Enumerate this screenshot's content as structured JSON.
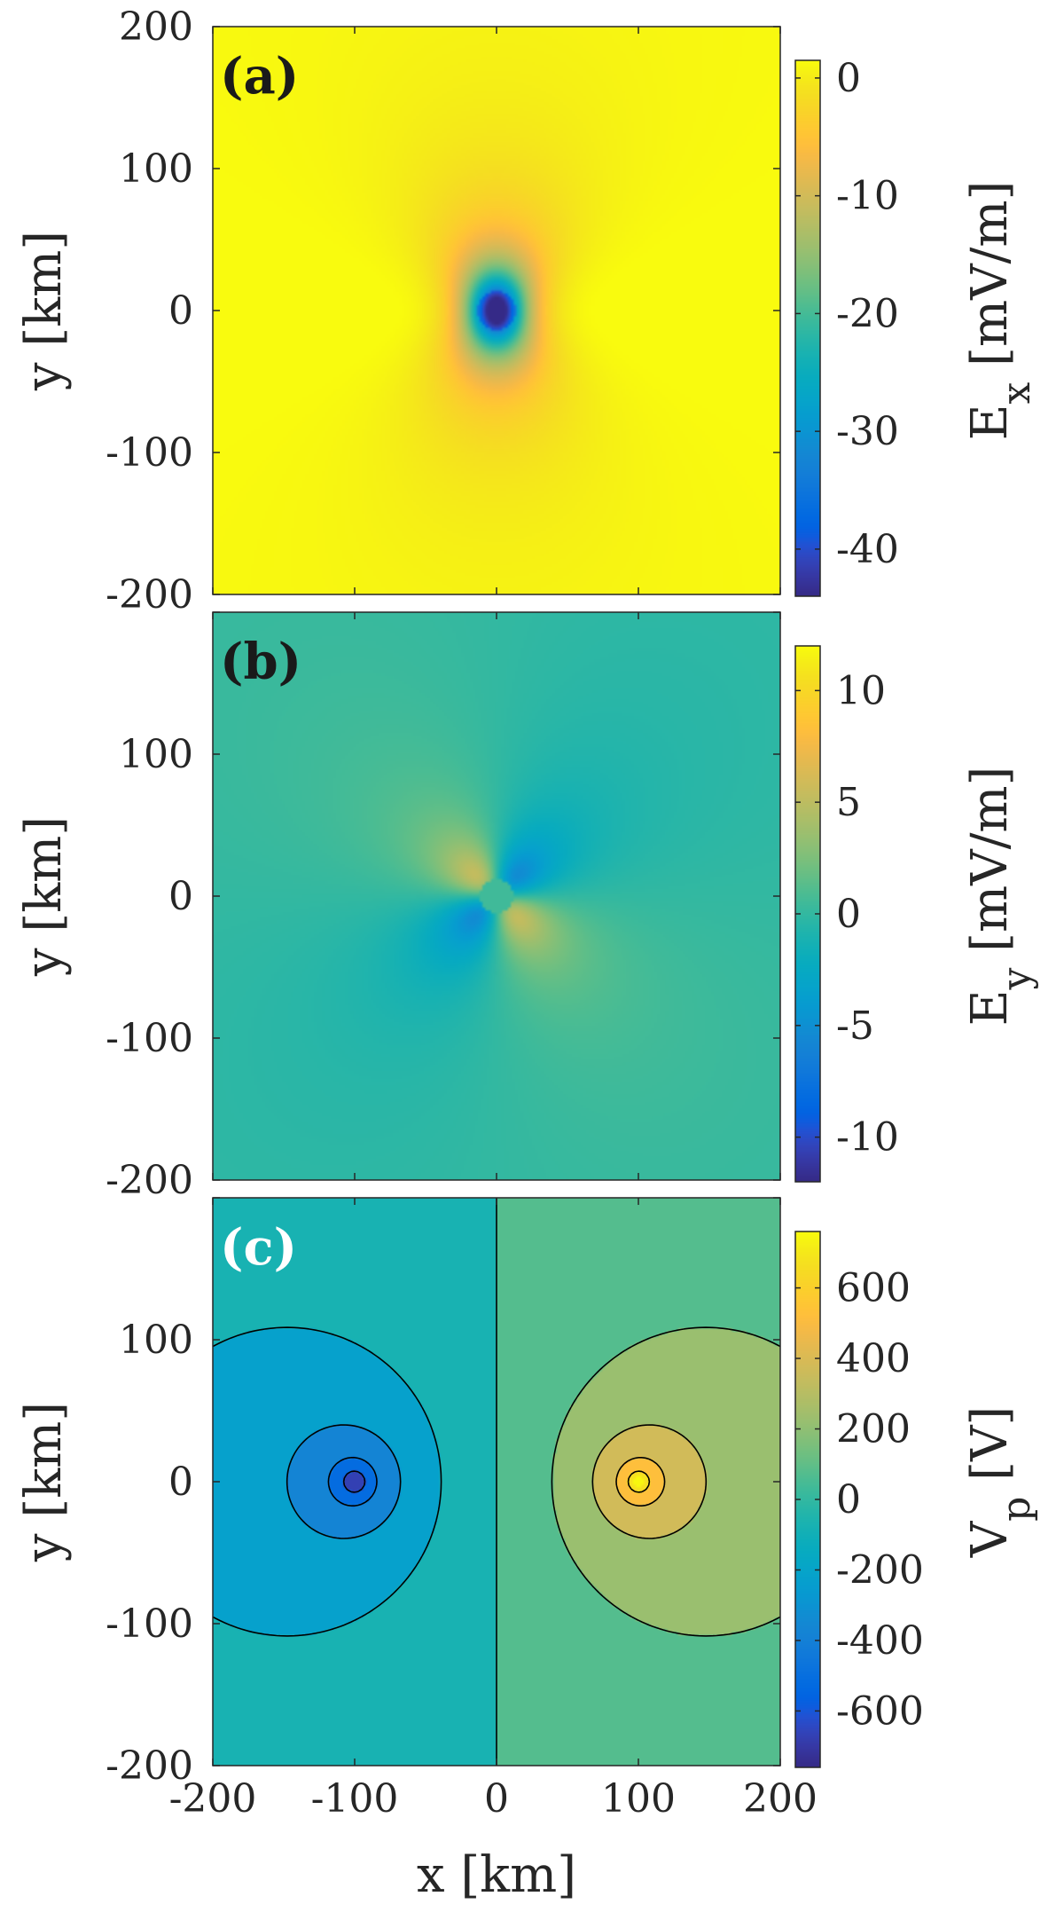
{
  "chart_data": [
    {
      "type": "heatmap",
      "panel_label": "(a)",
      "field": "Ex",
      "xlim": [
        -200,
        200
      ],
      "ylim": [
        -200,
        200
      ],
      "yticks": [
        "200",
        "100",
        "0",
        "-100",
        "-200"
      ],
      "ylabel": "y  [km]",
      "colorbar": {
        "label_main": "E",
        "label_sub": "x",
        "label_unit": "  [mV/m]",
        "range": [
          -44,
          1.5
        ],
        "ticks": [
          0,
          -10,
          -20,
          -30,
          -40
        ],
        "tick_labels": [
          "0",
          "-10",
          "-20",
          "-30",
          "-40"
        ]
      }
    },
    {
      "type": "heatmap",
      "panel_label": "(b)",
      "field": "Ey",
      "xlim": [
        -200,
        200
      ],
      "ylim": [
        -200,
        200
      ],
      "yticks": [
        "",
        "100",
        "0",
        "-100",
        "-200"
      ],
      "ylabel": "y  [km]",
      "colorbar": {
        "label_main": "E",
        "label_sub": "y",
        "label_unit": "  [mV/m]",
        "range": [
          -12,
          12
        ],
        "ticks": [
          10,
          5,
          0,
          -5,
          -10
        ],
        "tick_labels": [
          "10",
          "5",
          "0",
          "-5",
          "-10"
        ]
      }
    },
    {
      "type": "heatmap",
      "panel_label": "(c)",
      "field": "Vp",
      "xlim": [
        -200,
        200
      ],
      "ylim": [
        -200,
        200
      ],
      "yticks": [
        "",
        "100",
        "0",
        "-100",
        "-200"
      ],
      "xticks": [
        "-200",
        "-100",
        "0",
        "100",
        "200"
      ],
      "ylabel": "y  [km]",
      "xlabel": "x  [km]",
      "contour_levels": [
        -750,
        -600,
        -450,
        -300,
        -150,
        0,
        150,
        300,
        450,
        600,
        750
      ],
      "colorbar": {
        "label_main": "V",
        "label_sub": "p",
        "label_unit": "  [V]",
        "range": [
          -760,
          760
        ],
        "ticks": [
          600,
          400,
          200,
          0,
          -200,
          -400,
          -600
        ],
        "tick_labels": [
          "600",
          "400",
          "200",
          "0",
          "-200",
          "-400",
          "-600"
        ]
      }
    }
  ]
}
